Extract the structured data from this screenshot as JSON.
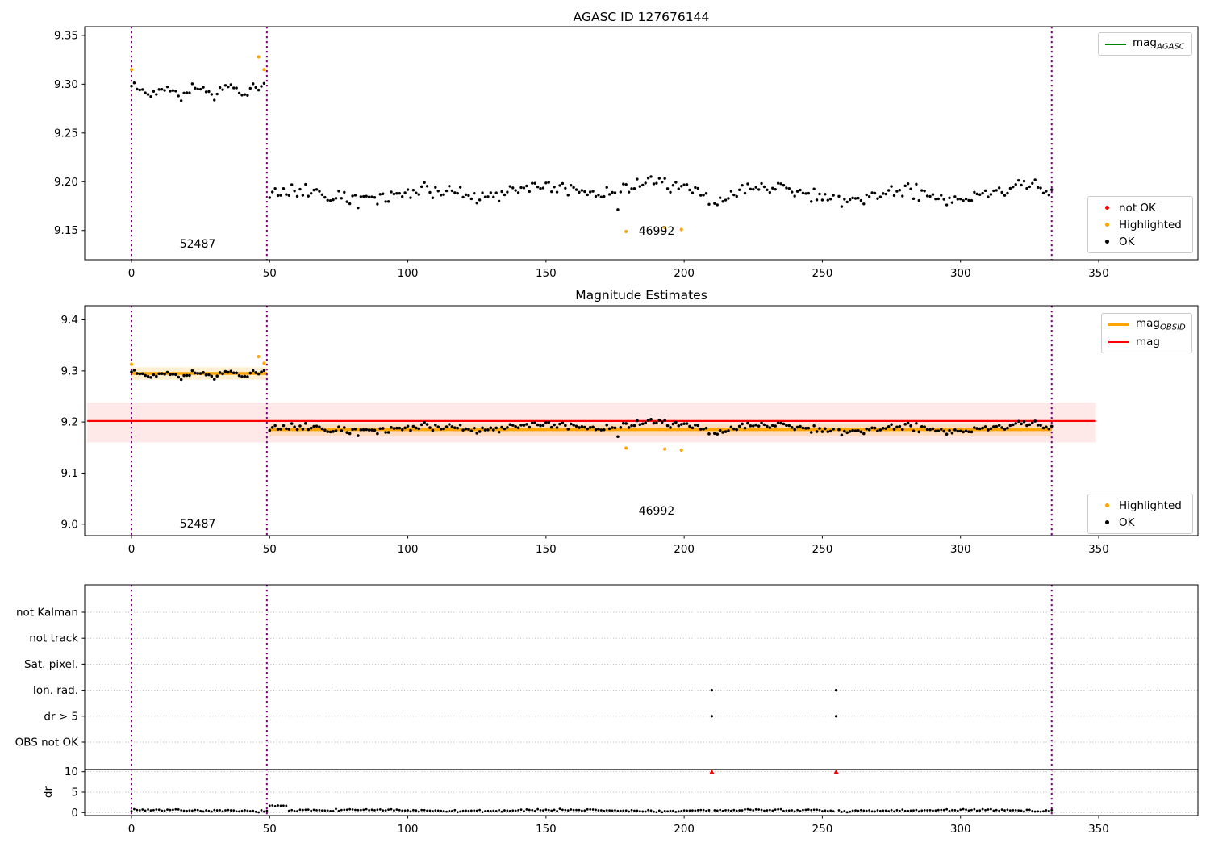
{
  "titles": {
    "top": "AGASC ID 127676144",
    "middle": "Magnitude Estimates"
  },
  "annotations": {
    "obsid_left": "52487",
    "obsid_right": "46992"
  },
  "legends": {
    "top_line": {
      "main": "mag",
      "sub": "AGASC"
    },
    "mid_line1": {
      "main": "mag",
      "sub": "OBSID"
    },
    "mid_line2": {
      "label": "mag"
    },
    "scatter_top": {
      "not_ok": "not OK",
      "highlighted": "Highlighted",
      "ok": "OK"
    },
    "scatter_mid": {
      "highlighted": "Highlighted",
      "ok": "OK"
    }
  },
  "colors": {
    "ok_point": "#000000",
    "highlighted_point": "#ffa500",
    "not_ok_point": "#ff0000",
    "agasc_line": "#008000",
    "obsid_line": "#ffa500",
    "obsid_band": "rgba(255,165,0,0.18)",
    "mag_line": "#ff0000",
    "mag_band": "rgba(255,0,0,0.09)",
    "obsid_boundary": "#800080",
    "grid": "#b0b0b0",
    "axis": "#000000"
  },
  "axes": {
    "x": {
      "tick_labels": [
        "0",
        "50",
        "100",
        "150",
        "200",
        "250",
        "300",
        "350"
      ],
      "tick_values": [
        0,
        50,
        100,
        150,
        200,
        250,
        300,
        350
      ],
      "lim": [
        -17,
        386
      ]
    },
    "top_y": {
      "tick_labels": [
        "9.15",
        "9.20",
        "9.25",
        "9.30",
        "9.35"
      ],
      "tick_values": [
        9.15,
        9.2,
        9.25,
        9.3,
        9.35
      ],
      "lim": [
        9.12,
        9.359
      ]
    },
    "mid_y": {
      "tick_labels": [
        "9.0",
        "9.1",
        "9.2",
        "9.3",
        "9.4"
      ],
      "tick_values": [
        9.0,
        9.1,
        9.2,
        9.3,
        9.4
      ],
      "lim": [
        8.977,
        9.428
      ]
    },
    "flags_y": {
      "categories": [
        "not Kalman",
        "not track",
        "Sat. pixel.",
        "Ion. rad.",
        "dr > 5",
        "OBS not OK"
      ],
      "dr_tick_labels": [
        "10",
        "5",
        "0"
      ],
      "dr_tick_values": [
        10,
        5,
        0
      ],
      "dr_axis_label": "dr"
    }
  },
  "chart_data": [
    {
      "type": "scatter",
      "title": "AGASC ID 127676144",
      "xlabel": "",
      "ylabel": "",
      "xlim": [
        -17,
        386
      ],
      "ylim": [
        9.12,
        9.359
      ],
      "obsid_boundaries": [
        0,
        49,
        333
      ],
      "legend_entries": [
        "mag_AGASC",
        "not OK",
        "Highlighted",
        "OK"
      ],
      "series_ok": {
        "name": "OK",
        "seed": 42,
        "segments": [
          {
            "x_start": 0,
            "x_end": 48,
            "x_step": 1,
            "mean": 9.2935,
            "wave_amp": 0.0045,
            "wave_freq": 0.55,
            "wave_phase": 1.2,
            "wave2_amp": 0,
            "wave2_freq": 0,
            "wave2_phase": 0,
            "noise": 0.0065,
            "dip_prob": 0,
            "dip": 0,
            "skip_x": []
          },
          {
            "x_start": 50,
            "x_end": 333,
            "x_step": 1,
            "mean": 9.1895,
            "wave_amp": 0.0055,
            "wave_freq": 0.145,
            "wave_phase": -7.25,
            "wave2_amp": 0.0035,
            "wave2_freq": 0.033,
            "wave2_phase": 2,
            "noise": 0.0095,
            "dip_prob": 0.022,
            "dip": 0.016,
            "skip_x": [
              210,
              255
            ]
          }
        ]
      },
      "series_highlighted": {
        "name": "Highlighted",
        "points": [
          [
            0,
            9.315
          ],
          [
            46,
            9.328
          ],
          [
            48,
            9.315
          ],
          [
            179,
            9.149
          ],
          [
            193,
            9.153
          ],
          [
            199,
            9.151
          ]
        ]
      },
      "series_not_ok": {
        "name": "not OK",
        "points": []
      },
      "annotations": [
        {
          "text": "52487",
          "x": 24,
          "y": 9.136
        },
        {
          "text": "46992",
          "x": 190,
          "y": 9.148
        }
      ]
    },
    {
      "type": "scatter",
      "title": "Magnitude Estimates",
      "xlabel": "",
      "ylabel": "",
      "xlim": [
        -17,
        386
      ],
      "ylim": [
        8.977,
        9.428
      ],
      "obsid_boundaries": [
        0,
        49,
        333
      ],
      "legend_entries": [
        "mag_OBSID",
        "mag",
        "Highlighted",
        "OK"
      ],
      "mag_line": {
        "y": 9.202,
        "band": [
          9.16,
          9.238
        ],
        "x_start": -16,
        "x_end": 349
      },
      "mag_obsid_segments": [
        {
          "x_start": 0,
          "x_end": 49,
          "y": 9.295,
          "band": [
            9.283,
            9.307
          ]
        },
        {
          "x_start": 50,
          "x_end": 333,
          "y": 9.185,
          "band": [
            9.173,
            9.197
          ]
        }
      ],
      "series_ok": {
        "name": "OK",
        "same_as_plot": 0
      },
      "series_highlighted": {
        "name": "Highlighted",
        "points": [
          [
            0,
            9.313
          ],
          [
            46,
            9.328
          ],
          [
            48,
            9.315
          ],
          [
            179,
            9.149
          ],
          [
            193,
            9.147
          ],
          [
            199,
            9.145
          ]
        ]
      },
      "annotations": [
        {
          "text": "52487",
          "x": 24,
          "y": 9.0
        },
        {
          "text": "46992",
          "x": 190,
          "y": 9.025
        }
      ]
    },
    {
      "type": "flag-timeline",
      "categories": [
        "not Kalman",
        "not track",
        "Sat. pixel.",
        "Ion. rad.",
        "dr > 5",
        "OBS not OK"
      ],
      "flag_points": [
        {
          "category": "Ion. rad.",
          "x": [
            210,
            255
          ]
        },
        {
          "category": "dr > 5",
          "x": [
            210,
            255
          ]
        }
      ],
      "dr_clipped_points": {
        "x": [
          210,
          255
        ],
        "value": 10,
        "color": "#ff0000"
      },
      "dr_series": {
        "seed": 7,
        "x_start": 0,
        "x_end": 333,
        "x_step": 1,
        "base": 0.5,
        "noise": 0.3,
        "wave_amp": 0.16,
        "wave_freq": 0.085,
        "wave_phase": 1,
        "min": 0.06,
        "skip_x": [
          210,
          255
        ],
        "bump": {
          "x_start": 50,
          "x_end": 56,
          "base": 1.62,
          "noise": 0.25
        }
      },
      "separator_dr": 10.55,
      "obsid_boundaries": [
        0,
        49,
        333
      ],
      "ylabel": "dr"
    }
  ]
}
